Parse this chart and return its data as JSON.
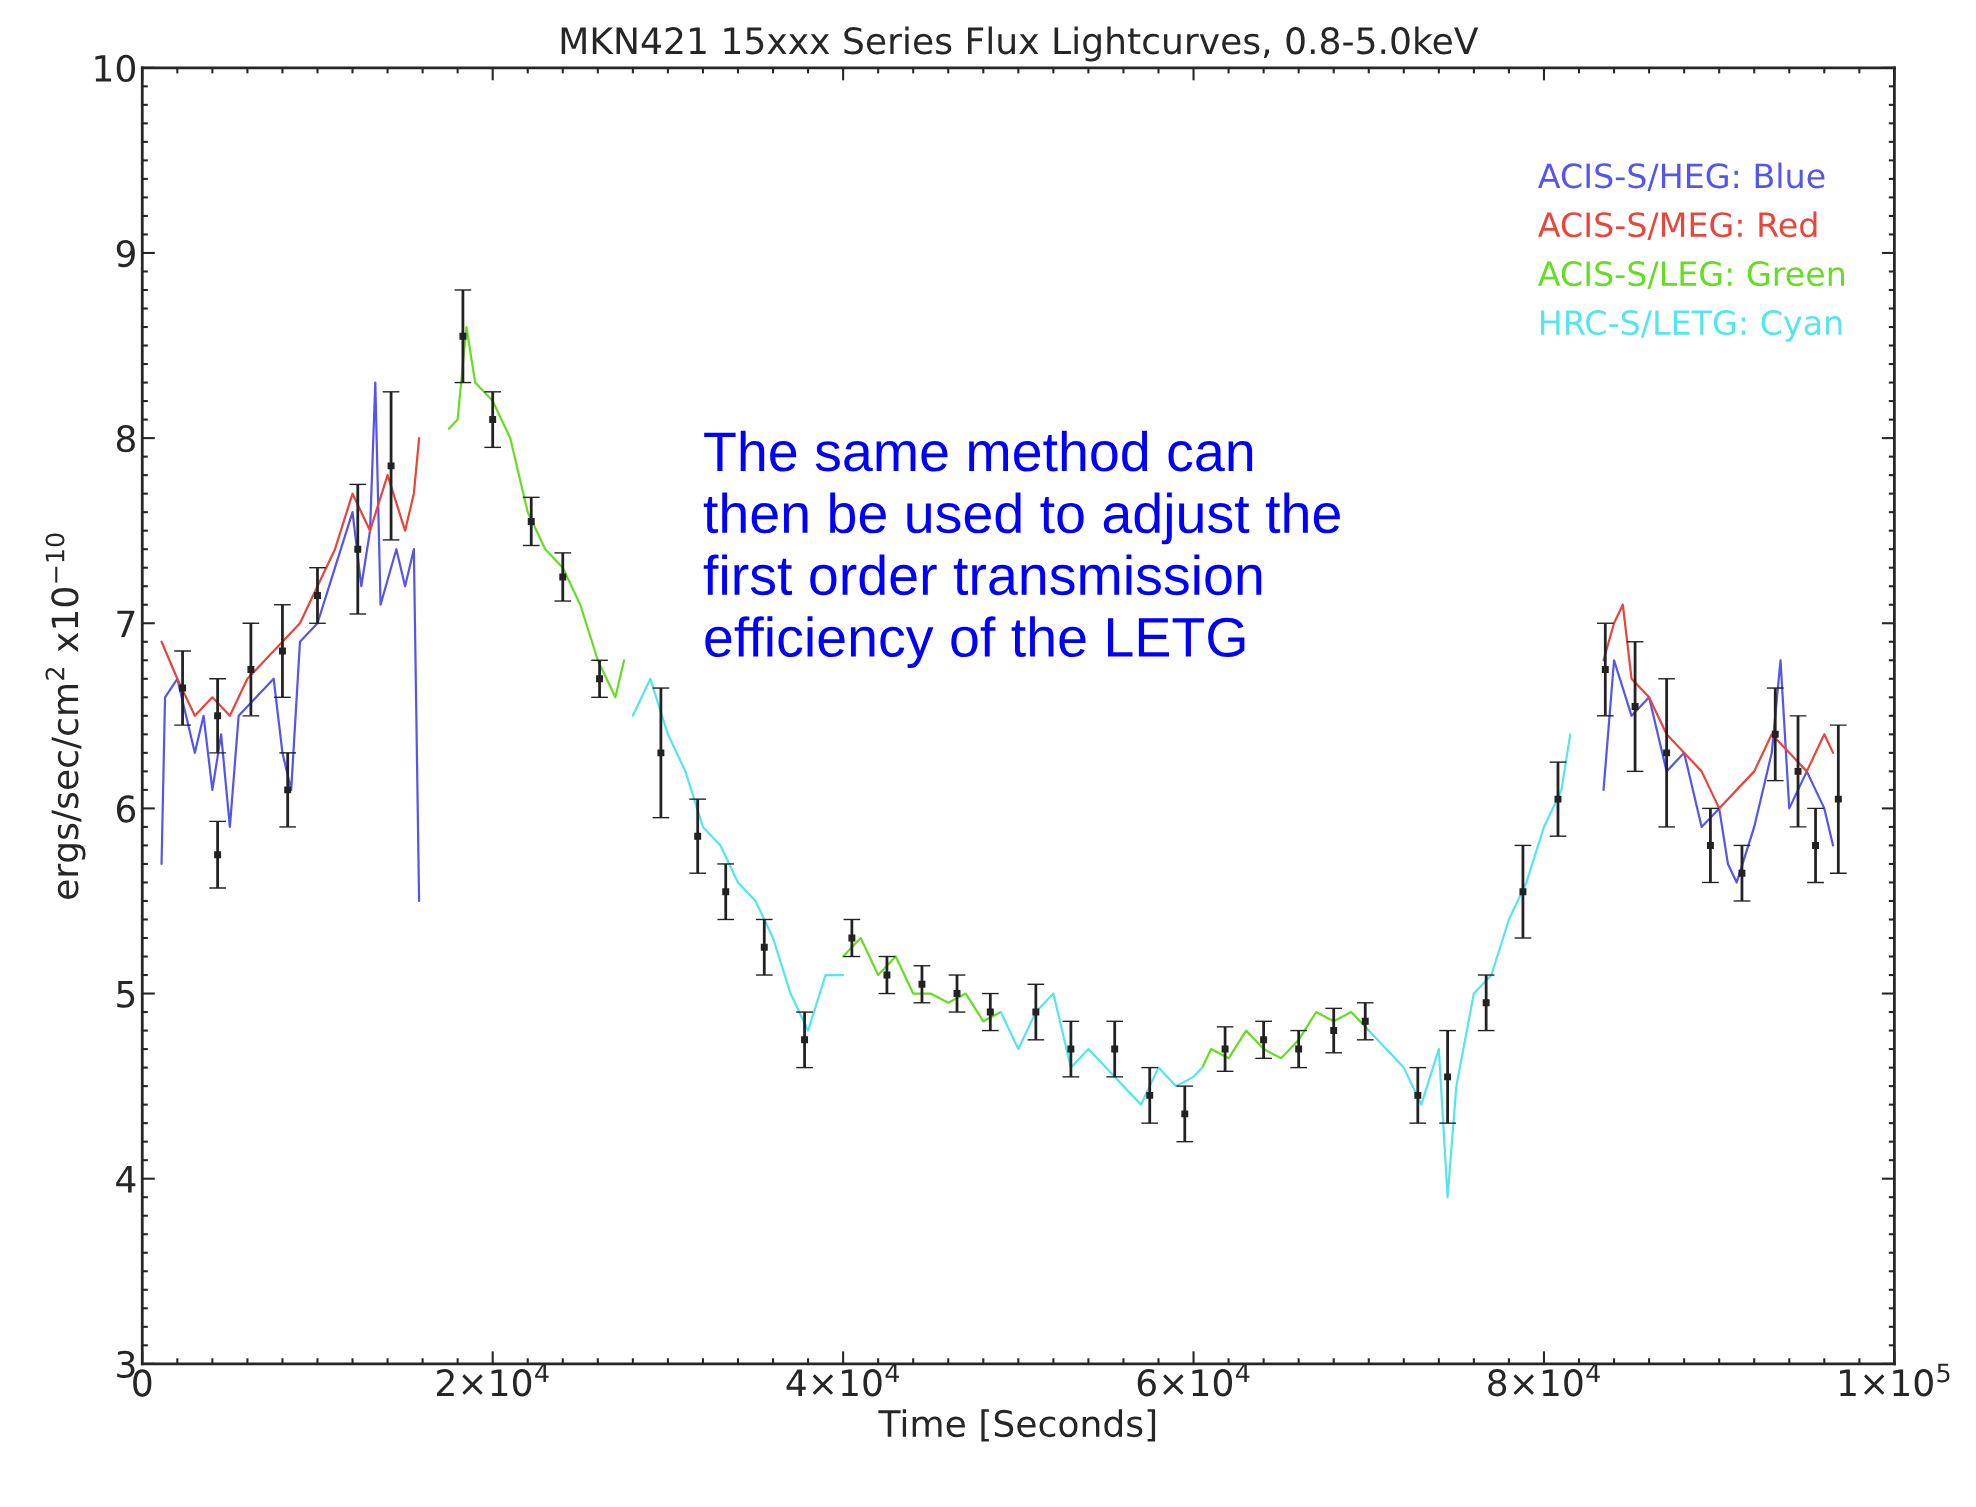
{
  "chart_data": {
    "type": "line",
    "title": "MKN421 15xxx Series Flux Lightcurves, 0.8-5.0keV",
    "xlabel": "Time [Seconds]",
    "ylabel": "ergs/sec/cm$^{2}$ x10$^{−10}$",
    "xlim": [
      0,
      100000
    ],
    "ylim": [
      3,
      10
    ],
    "xticks": [
      {
        "value": 0,
        "label": "0"
      },
      {
        "value": 20000,
        "label": "2×10$^{4}$"
      },
      {
        "value": 40000,
        "label": "4×10$^{4}$"
      },
      {
        "value": 60000,
        "label": "6×10$^{4}$"
      },
      {
        "value": 80000,
        "label": "8×10$^{4}$"
      },
      {
        "value": 100000,
        "label": "1×10$^{5}$"
      }
    ],
    "yticks": [
      3,
      4,
      5,
      6,
      7,
      8,
      9,
      10
    ],
    "legend": "top right",
    "grid": false,
    "line_style": "solid",
    "annotations": [
      "The same method can\nthen be used to adjust the\nfirst order transmission\nefficiency of the LETG"
    ],
    "series": [
      {
        "name": "ACIS-S/HEG: Blue",
        "color": "#5555ee",
        "x": [
          1100,
          1300,
          2000,
          3000,
          3500,
          4000,
          4500,
          5000,
          5500,
          6500,
          7500,
          8000,
          8500,
          9000,
          10000,
          11000,
          12000,
          12500,
          13000,
          13300,
          13600,
          14500,
          15000,
          15500,
          15800,
          16000,
          83400,
          84000,
          85000,
          86000,
          87000,
          88000,
          89000,
          90000,
          90500,
          91000,
          92000,
          93000,
          93500,
          94000,
          95000,
          96000,
          96500
        ],
        "values": [
          5.7,
          6.6,
          6.7,
          6.3,
          6.5,
          6.1,
          6.4,
          5.9,
          6.5,
          6.6,
          6.7,
          6.3,
          6.1,
          6.9,
          7.0,
          7.3,
          7.6,
          7.2,
          7.5,
          8.3,
          7.1,
          7.4,
          7.2,
          7.4,
          5.5,
          null,
          6.1,
          6.8,
          6.5,
          6.6,
          6.2,
          6.3,
          5.9,
          6.0,
          5.7,
          5.6,
          5.9,
          6.3,
          6.8,
          6.0,
          6.2,
          6.0,
          5.8
        ]
      },
      {
        "name": "ACIS-S/MEG: Red",
        "color": "#e8453c",
        "x": [
          1100,
          2000,
          3000,
          4000,
          5000,
          6000,
          7000,
          8000,
          9000,
          10000,
          11000,
          12000,
          13000,
          14000,
          15000,
          15500,
          15800,
          16000,
          83400,
          84000,
          84500,
          85000,
          86000,
          87000,
          88000,
          89000,
          90000,
          91000,
          92000,
          93000,
          94000,
          95000,
          96000,
          96500
        ],
        "values": [
          6.9,
          6.7,
          6.5,
          6.6,
          6.5,
          6.7,
          6.8,
          6.9,
          7.0,
          7.2,
          7.4,
          7.7,
          7.5,
          7.8,
          7.5,
          7.7,
          8.0,
          null,
          6.8,
          7.0,
          7.1,
          6.7,
          6.6,
          6.4,
          6.3,
          6.2,
          6.0,
          6.1,
          6.2,
          6.4,
          6.3,
          6.2,
          6.4,
          6.3
        ]
      },
      {
        "name": "ACIS-S/LEG: Green",
        "color": "#66dd22",
        "x": [
          17500,
          18000,
          18500,
          19000,
          20000,
          21000,
          22000,
          23000,
          24000,
          25000,
          26000,
          27000,
          27500,
          28000,
          40000,
          41000,
          42000,
          43000,
          44000,
          45000,
          46000,
          47000,
          48000,
          49000,
          50000,
          60500,
          61000,
          62000,
          63000,
          64000,
          65000,
          66000,
          67000,
          68000,
          69000,
          70000
        ],
        "values": [
          8.05,
          8.1,
          8.6,
          8.3,
          8.2,
          8.0,
          7.6,
          7.4,
          7.3,
          7.1,
          6.8,
          6.6,
          6.8,
          null,
          5.2,
          5.3,
          5.1,
          5.2,
          5.0,
          5.0,
          4.95,
          5.0,
          4.85,
          4.9,
          null,
          4.6,
          4.7,
          4.65,
          4.8,
          4.7,
          4.65,
          4.75,
          4.9,
          4.85,
          4.9,
          4.8
        ]
      },
      {
        "name": "HRC-S/LETG: Cyan",
        "color": "#55e5ee",
        "x": [
          28000,
          29000,
          30000,
          31000,
          32000,
          33000,
          34000,
          35000,
          36000,
          37000,
          38000,
          39000,
          40000,
          44000,
          49000,
          50000,
          51000,
          52000,
          53000,
          54000,
          55000,
          56000,
          57000,
          58000,
          59000,
          60000,
          60500,
          65000,
          70000,
          71000,
          72000,
          73000,
          74000,
          74500,
          75000,
          76000,
          77000,
          78000,
          79000,
          80000,
          81000,
          81500
        ],
        "values": [
          6.5,
          6.7,
          6.4,
          6.2,
          5.9,
          5.8,
          5.6,
          5.5,
          5.3,
          5.0,
          4.8,
          5.1,
          5.1,
          null,
          4.9,
          4.7,
          4.9,
          5.0,
          4.6,
          4.7,
          4.6,
          4.5,
          4.4,
          4.6,
          4.5,
          4.55,
          4.6,
          null,
          4.8,
          4.7,
          4.6,
          4.4,
          4.7,
          3.9,
          4.5,
          5.0,
          5.1,
          5.4,
          5.6,
          5.9,
          6.1,
          6.4
        ]
      },
      {
        "type": "scatter",
        "marker": "square",
        "color": "#222222",
        "x": [
          2300,
          4300,
          4300,
          6200,
          8000,
          8300,
          10000,
          12300,
          14200,
          18300,
          20000,
          22200,
          24000,
          26100,
          29600,
          31700,
          33300,
          35500,
          37800,
          40500,
          42500,
          44500,
          46500,
          48400,
          51000,
          53000,
          55500,
          57500,
          59500,
          61800,
          64000,
          66000,
          68000,
          69800,
          72800,
          74500,
          76700,
          78800,
          80800,
          83500,
          85200,
          87000,
          89500,
          91300,
          93200,
          94500,
          95500,
          96800
        ],
        "values": [
          6.65,
          6.5,
          5.75,
          6.75,
          6.85,
          6.1,
          7.15,
          7.4,
          7.85,
          8.55,
          8.1,
          7.55,
          7.25,
          6.7,
          6.3,
          5.85,
          5.55,
          5.25,
          4.75,
          5.3,
          5.1,
          5.05,
          5.0,
          4.9,
          4.9,
          4.7,
          4.7,
          4.45,
          4.35,
          4.7,
          4.75,
          4.7,
          4.8,
          4.85,
          4.45,
          4.55,
          4.95,
          5.55,
          6.05,
          6.75,
          6.55,
          6.3,
          5.8,
          5.65,
          6.4,
          6.2,
          5.8,
          6.05
        ],
        "errors": [
          0.2,
          0.2,
          0.18,
          0.25,
          0.25,
          0.2,
          0.15,
          0.35,
          0.4,
          0.25,
          0.15,
          0.13,
          0.13,
          0.1,
          0.35,
          0.2,
          0.15,
          0.15,
          0.15,
          0.1,
          0.1,
          0.1,
          0.1,
          0.1,
          0.15,
          0.15,
          0.15,
          0.15,
          0.15,
          0.12,
          0.1,
          0.1,
          0.12,
          0.1,
          0.15,
          0.25,
          0.15,
          0.25,
          0.2,
          0.25,
          0.35,
          0.4,
          0.2,
          0.15,
          0.25,
          0.3,
          0.2,
          0.4
        ]
      }
    ]
  }
}
